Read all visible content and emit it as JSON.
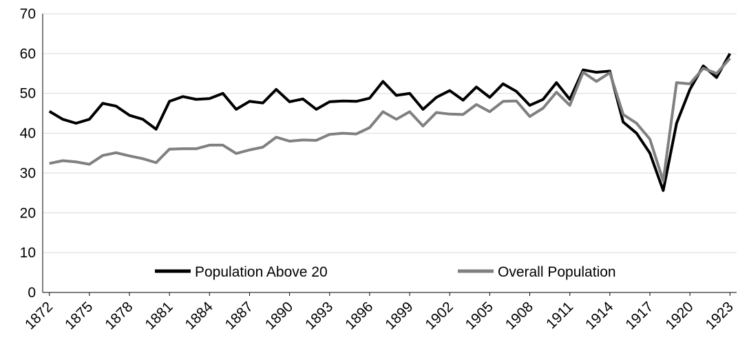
{
  "chart_data": {
    "type": "line",
    "x": [
      1872,
      1873,
      1874,
      1875,
      1876,
      1877,
      1878,
      1879,
      1880,
      1881,
      1882,
      1883,
      1884,
      1885,
      1886,
      1887,
      1888,
      1889,
      1890,
      1891,
      1892,
      1893,
      1894,
      1895,
      1896,
      1897,
      1898,
      1899,
      1900,
      1901,
      1902,
      1903,
      1904,
      1905,
      1906,
      1907,
      1908,
      1909,
      1910,
      1911,
      1912,
      1913,
      1914,
      1915,
      1916,
      1917,
      1918,
      1919,
      1920,
      1921,
      1922,
      1923
    ],
    "series": [
      {
        "name": "Population Above 20",
        "color": "#000000",
        "values": [
          45.5,
          43.5,
          42.5,
          43.5,
          47.5,
          46.8,
          44.5,
          43.5,
          41,
          48,
          49.2,
          48.5,
          48.7,
          50,
          46,
          48,
          47.6,
          51,
          47.9,
          48.6,
          46,
          47.9,
          48.1,
          48,
          48.8,
          53,
          49.5,
          50,
          46,
          49,
          50.7,
          48.3,
          51.6,
          49,
          52.4,
          50.5,
          47,
          48.5,
          52.7,
          48.5,
          55.9,
          55.3,
          55.6,
          42.8,
          40,
          35,
          25.6,
          42.5,
          51,
          56.9,
          54,
          60
        ]
      },
      {
        "name": "Overall Population",
        "color": "#808080",
        "values": [
          32.4,
          33.1,
          32.8,
          32.2,
          34.4,
          35.1,
          34.3,
          33.6,
          32.6,
          36,
          36.1,
          36.1,
          37,
          37,
          34.9,
          35.8,
          36.5,
          39,
          38,
          38.3,
          38.2,
          39.7,
          40,
          39.8,
          41.4,
          45.4,
          43.5,
          45.4,
          41.8,
          45.2,
          44.8,
          44.7,
          47.2,
          45.4,
          48,
          48.1,
          44.2,
          46.3,
          50.3,
          47,
          55.3,
          53,
          55.2,
          44.7,
          42.5,
          38.5,
          28,
          52.7,
          52.4,
          56.3,
          55,
          58.8
        ]
      }
    ],
    "xlim": [
      1871.5,
      1923.5
    ],
    "xticks": [
      1872,
      1875,
      1878,
      1881,
      1884,
      1887,
      1890,
      1893,
      1896,
      1899,
      1902,
      1905,
      1908,
      1911,
      1914,
      1917,
      1920,
      1923
    ],
    "ylim": [
      0,
      70
    ],
    "yticks": [
      0,
      10,
      20,
      30,
      40,
      50,
      60,
      70
    ],
    "grid": true,
    "legend": "bottom"
  }
}
